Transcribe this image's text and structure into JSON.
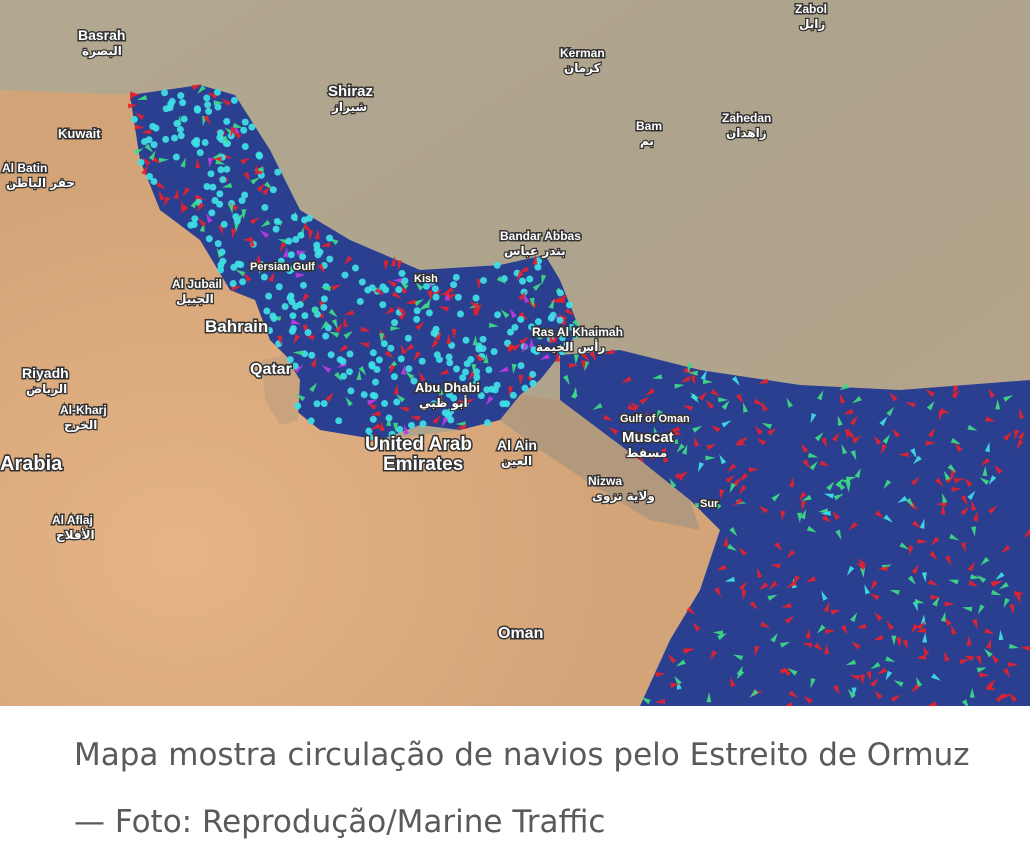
{
  "map": {
    "colors": {
      "sea": "#2a3f8f",
      "desert": "#d9a77a",
      "mountain": "#a59a85",
      "ship_tanker": "#e8212b",
      "ship_cargo": "#3ddc84",
      "ship_passenger": "#3fe0e6",
      "ship_other": "#c03ae0"
    },
    "labels": [
      {
        "name": "Basrah",
        "ar": "البصرة"
      },
      {
        "name": "Kuwait",
        "ar": ""
      },
      {
        "name": "Al Batin",
        "ar": "حفر الباطن"
      },
      {
        "name": "Shiraz",
        "ar": "شيراز"
      },
      {
        "name": "Kerman",
        "ar": "كرمان"
      },
      {
        "name": "Bam",
        "ar": "بم"
      },
      {
        "name": "Zahedan",
        "ar": "زاهدان"
      },
      {
        "name": "Zabol",
        "ar": "زابل"
      },
      {
        "name": "Bandar Abbas",
        "ar": "بندر عباس"
      },
      {
        "name": "Kish",
        "ar": ""
      },
      {
        "name": "Al Jubail",
        "ar": "الجبيل"
      },
      {
        "name": "Bahrain",
        "ar": ""
      },
      {
        "name": "Qatar",
        "ar": ""
      },
      {
        "name": "Riyadh",
        "ar": "الرياض"
      },
      {
        "name": "Al-Kharj",
        "ar": "الخرج"
      },
      {
        "name": "Arabia",
        "ar": ""
      },
      {
        "name": "Al Aflaj",
        "ar": "الأفلاج"
      },
      {
        "name": "Abu Dhabi",
        "ar": "أبو ظبي"
      },
      {
        "name": "United Arab",
        "ar": ""
      },
      {
        "name": "Emirates",
        "ar": ""
      },
      {
        "name": "Al Ain",
        "ar": "العين"
      },
      {
        "name": "Ras Al Khaimah",
        "ar": "رأس الخيمة"
      },
      {
        "name": "Gulf of Oman",
        "ar": ""
      },
      {
        "name": "Muscat",
        "ar": "مسقط"
      },
      {
        "name": "Nizwa",
        "ar": "ولاية نزوى"
      },
      {
        "name": "Sur",
        "ar": ""
      },
      {
        "name": "Oman",
        "ar": ""
      },
      {
        "name": "Persian Gulf",
        "ar": ""
      }
    ]
  },
  "caption": "Mapa mostra circulação de navios pelo Estreito de Ormuz — Foto: Reprodução/Marine Traffic"
}
